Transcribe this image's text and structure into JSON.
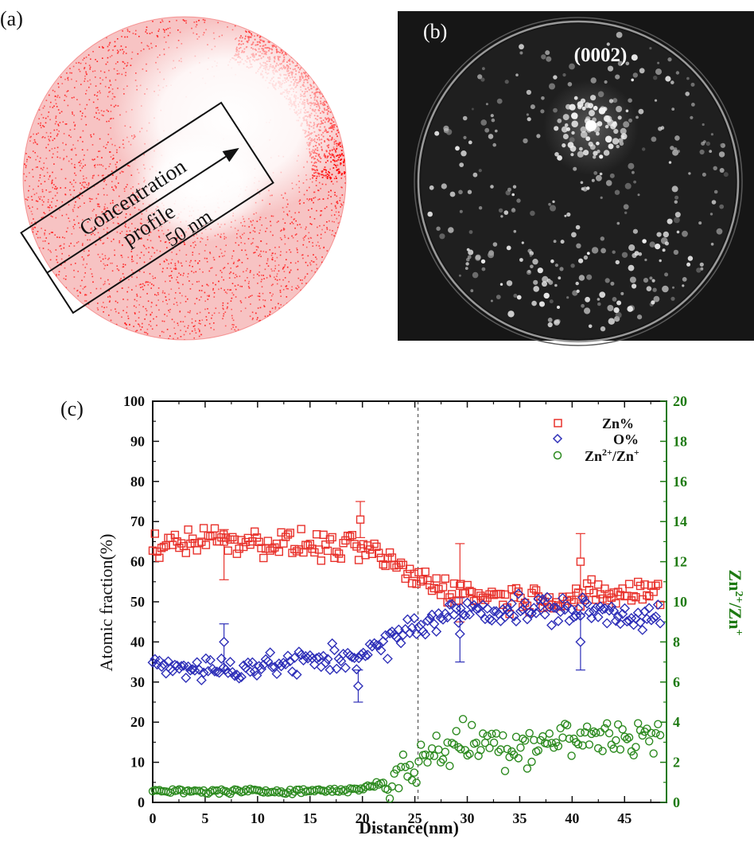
{
  "panels": {
    "a": {
      "label": "(a)",
      "text_concentration": "Concentration",
      "text_profile": "profile",
      "text_length": "50 nm",
      "point_color": "#ff1a1a"
    },
    "b": {
      "label": "(b)",
      "pole_label": "(0002)"
    },
    "c": {
      "label": "(c)"
    }
  },
  "chart_data": {
    "type": "scatter",
    "xlabel": "Distance(nm)",
    "ylabel": "Atomic fraction(%)",
    "y2label": "Zn2+/Zn+",
    "xlim": [
      0,
      49
    ],
    "ylim": [
      0,
      100
    ],
    "y2lim": [
      0,
      20
    ],
    "x_ticks": [
      0,
      5,
      10,
      15,
      20,
      25,
      30,
      35,
      40,
      45
    ],
    "y_ticks": [
      0,
      10,
      20,
      30,
      40,
      50,
      60,
      70,
      80,
      90,
      100
    ],
    "y2_ticks": [
      0,
      2,
      4,
      6,
      8,
      10,
      12,
      14,
      16,
      18,
      20
    ],
    "vertical_line_x": 25.3,
    "legend_position": "top-right",
    "series": [
      {
        "name": "Zn%",
        "axis": "left",
        "marker": "square",
        "color": "#e8322c",
        "profile": [
          {
            "x": 0,
            "y": 64
          },
          {
            "x": 5,
            "y": 66
          },
          {
            "x": 10,
            "y": 65
          },
          {
            "x": 15,
            "y": 64
          },
          {
            "x": 20,
            "y": 63
          },
          {
            "x": 22,
            "y": 61
          },
          {
            "x": 25,
            "y": 56
          },
          {
            "x": 30,
            "y": 52
          },
          {
            "x": 35,
            "y": 51
          },
          {
            "x": 40,
            "y": 51
          },
          {
            "x": 45,
            "y": 52
          },
          {
            "x": 49,
            "y": 53
          }
        ],
        "error_bars": [
          {
            "x": 6.8,
            "y": 65,
            "low": 55.5,
            "high": 68
          },
          {
            "x": 19.8,
            "y": 70.5,
            "low": 66,
            "high": 75
          },
          {
            "x": 29.3,
            "y": 54,
            "low": 45,
            "high": 64.5
          },
          {
            "x": 40.8,
            "y": 60,
            "low": 53,
            "high": 67
          }
        ]
      },
      {
        "name": "O%",
        "axis": "left",
        "marker": "diamond",
        "color": "#2e2fb8",
        "profile": [
          {
            "x": 0,
            "y": 35
          },
          {
            "x": 5,
            "y": 33
          },
          {
            "x": 10,
            "y": 34
          },
          {
            "x": 15,
            "y": 35
          },
          {
            "x": 20,
            "y": 37
          },
          {
            "x": 22,
            "y": 39
          },
          {
            "x": 25,
            "y": 44
          },
          {
            "x": 30,
            "y": 48
          },
          {
            "x": 35,
            "y": 48
          },
          {
            "x": 40,
            "y": 48
          },
          {
            "x": 45,
            "y": 47
          },
          {
            "x": 49,
            "y": 46
          }
        ],
        "error_bars": [
          {
            "x": 6.8,
            "y": 40,
            "low": 33,
            "high": 44.5
          },
          {
            "x": 19.6,
            "y": 29,
            "low": 25,
            "high": 33
          },
          {
            "x": 29.3,
            "y": 42,
            "low": 35,
            "high": 51
          },
          {
            "x": 40.8,
            "y": 40,
            "low": 33,
            "high": 47
          }
        ]
      },
      {
        "name": "Zn2+/Zn+",
        "axis": "right",
        "marker": "circle",
        "color": "#2c8a1f",
        "profile": [
          {
            "x": 0,
            "y": 0.55
          },
          {
            "x": 10,
            "y": 0.55
          },
          {
            "x": 18,
            "y": 0.6
          },
          {
            "x": 20,
            "y": 0.7
          },
          {
            "x": 22,
            "y": 1.0
          },
          {
            "x": 24,
            "y": 1.4
          },
          {
            "x": 26,
            "y": 2.3
          },
          {
            "x": 28,
            "y": 2.8
          },
          {
            "x": 30,
            "y": 3.0
          },
          {
            "x": 35,
            "y": 2.9
          },
          {
            "x": 40,
            "y": 3.2
          },
          {
            "x": 45,
            "y": 3.3
          },
          {
            "x": 49,
            "y": 3.4
          }
        ]
      }
    ]
  },
  "legend": [
    {
      "text": "Zn%"
    },
    {
      "text": "O%"
    },
    {
      "text_base1": "Zn",
      "sup1": "2+",
      "text_base2": "/Zn",
      "sup2": "+"
    }
  ],
  "right_axis_title": {
    "base1": "Zn",
    "sup1": "2+",
    "base2": "/Zn",
    "sup2": "+"
  }
}
